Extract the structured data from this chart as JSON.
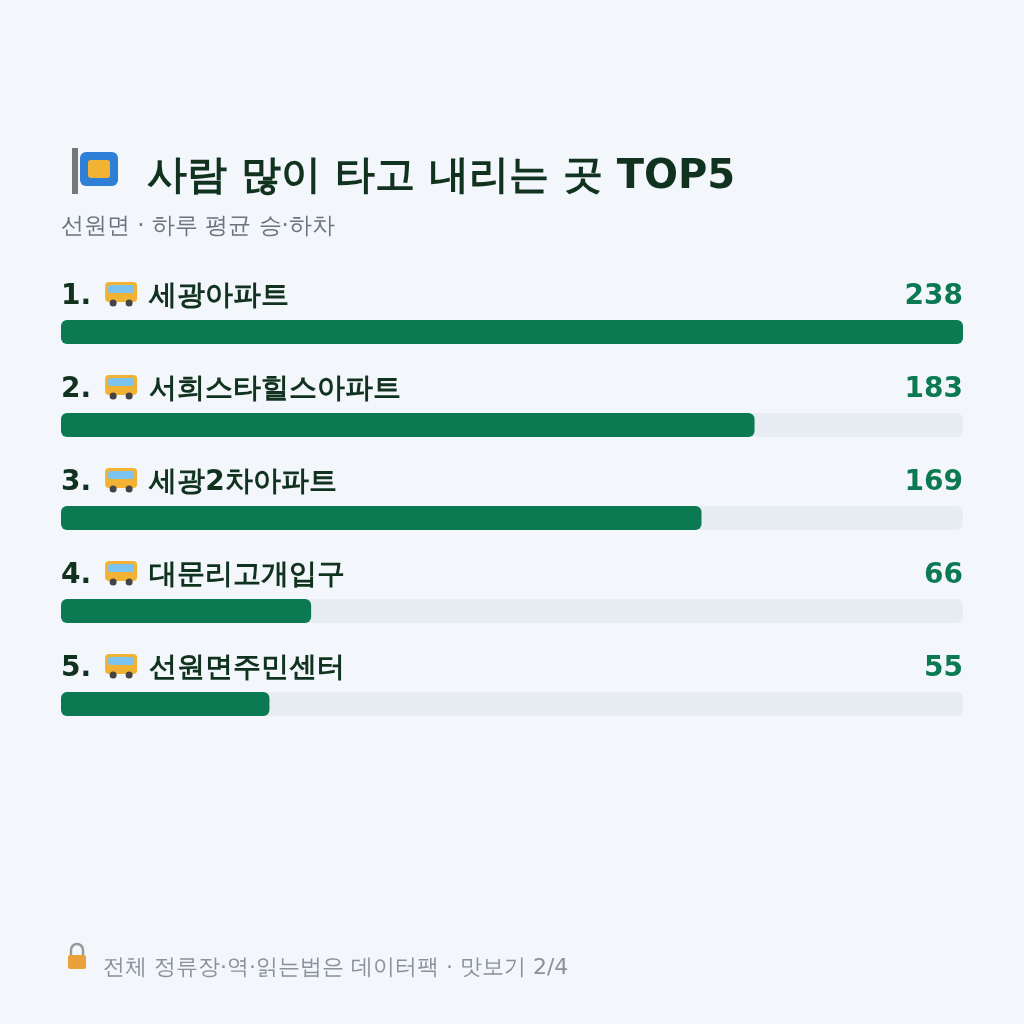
{
  "chart_data": {
    "type": "bar",
    "orientation": "horizontal",
    "title": "사람 많이 타고 내리는 곳 TOP5",
    "subtitle": "선원면 · 하루 평균 승·하차",
    "categories": [
      "1. 세광아파트",
      "2. 서희스타힐스아파트",
      "3. 세광2차아파트",
      "4. 대문리고개입구",
      "5. 선원면주민센터"
    ],
    "values": [
      238,
      183,
      169,
      66,
      55
    ],
    "color": "#0b7a53",
    "data_labels": true,
    "annotations": [
      "전체 정류장·역·읽는법은 데이터팩 · 맛보기 2/4"
    ]
  }
}
